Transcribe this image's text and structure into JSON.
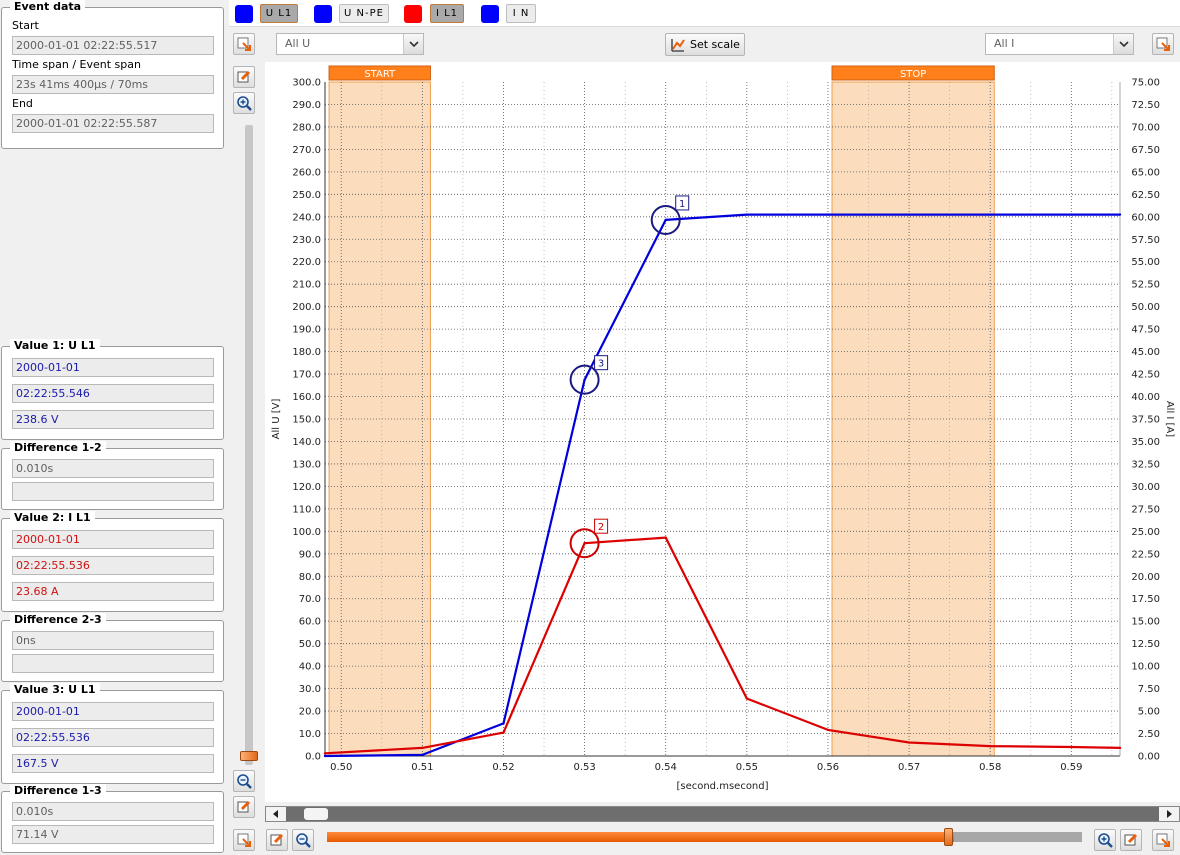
{
  "event_data": {
    "title": "Event data",
    "start_label": "Start",
    "start_value": "2000-01-01 02:22:55.517",
    "span_label": "Time span / Event span",
    "span_value": "23s 41ms 400µs  / 70ms",
    "end_label": "End",
    "end_value": "2000-01-01 02:22:55.587"
  },
  "value1": {
    "title": "Value 1: U L1",
    "date": "2000-01-01",
    "time": "02:22:55.546",
    "value": "238.6 V",
    "color": "#1a1aaa"
  },
  "diff12": {
    "title": "Difference 1-2",
    "time": "0.010s",
    "value": ""
  },
  "value2": {
    "title": "Value 2: I L1",
    "date": "2000-01-01",
    "time": "02:22:55.536",
    "value": "23.68 A",
    "color": "#d01010"
  },
  "diff23": {
    "title": "Difference 2-3",
    "time": "0ns",
    "value": ""
  },
  "value3": {
    "title": "Value 3: U L1",
    "date": "2000-01-01",
    "time": "02:22:55.536",
    "value": "167.5 V",
    "color": "#1a1aaa"
  },
  "diff13": {
    "title": "Difference 1-3",
    "time": "0.010s",
    "value": "71.14 V"
  },
  "channels": [
    {
      "label": "U L1",
      "color": "#0000ff",
      "active": true
    },
    {
      "label": "U N-PE",
      "color": "#0000ff",
      "active": false
    },
    {
      "label": "I L1",
      "color": "#ff0000",
      "active": true
    },
    {
      "label": "I N",
      "color": "#0000ff",
      "active": false
    }
  ],
  "toolbar": {
    "left_select": "All U",
    "right_select": "All I",
    "set_scale_label": "Set scale"
  },
  "colors": {
    "accent_orange": "#ff7f1a",
    "marker_region": "#fbdcbd",
    "u_series": "#0000dd",
    "i_series": "#e00000"
  },
  "chart_data": {
    "type": "line",
    "xlabel": "[second.msecond]",
    "ylabel_left": "All U [V]",
    "ylabel_right": "All I [A]",
    "xlim": [
      0.498,
      0.596
    ],
    "ylim_left": [
      0,
      300
    ],
    "ylim_right": [
      0,
      75
    ],
    "x_ticks": [
      "0.50",
      "0.51",
      "0.52",
      "0.53",
      "0.54",
      "0.55",
      "0.56",
      "0.57",
      "0.58",
      "0.59"
    ],
    "y_left_ticks": [
      "0.0",
      "10.0",
      "20.0",
      "30.0",
      "40.0",
      "50.0",
      "60.0",
      "70.0",
      "80.0",
      "90.0",
      "100.0",
      "110.0",
      "120.0",
      "130.0",
      "140.0",
      "150.0",
      "160.0",
      "170.0",
      "180.0",
      "190.0",
      "200.0",
      "210.0",
      "220.0",
      "230.0",
      "240.0",
      "250.0",
      "260.0",
      "270.0",
      "280.0",
      "290.0",
      "300.0"
    ],
    "y_right_ticks": [
      "0.00",
      "2.50",
      "5.00",
      "7.50",
      "10.00",
      "12.50",
      "15.00",
      "17.50",
      "20.00",
      "22.50",
      "25.00",
      "27.50",
      "30.00",
      "32.50",
      "35.00",
      "37.50",
      "40.00",
      "42.50",
      "45.00",
      "47.50",
      "50.00",
      "52.50",
      "55.00",
      "57.50",
      "60.00",
      "62.50",
      "65.00",
      "67.50",
      "70.00",
      "72.50",
      "75.00"
    ],
    "grid": true,
    "series": [
      {
        "name": "U L1",
        "axis": "left",
        "color": "#0000dd",
        "x": [
          0.498,
          0.51,
          0.52,
          0.53,
          0.54,
          0.55,
          0.56,
          0.57,
          0.58,
          0.59,
          0.596
        ],
        "y": [
          0.0,
          0.5,
          14.5,
          167.5,
          238.6,
          241.0,
          241.0,
          241.0,
          241.0,
          241.0,
          241.0
        ]
      },
      {
        "name": "I L1",
        "axis": "right",
        "color": "#dd0000",
        "x": [
          0.498,
          0.51,
          0.52,
          0.53,
          0.54,
          0.55,
          0.56,
          0.57,
          0.58,
          0.59,
          0.596
        ],
        "y": [
          0.3,
          0.9,
          2.6,
          23.68,
          24.3,
          6.4,
          2.9,
          1.5,
          1.1,
          1.0,
          0.9
        ]
      }
    ],
    "regions": [
      {
        "label": "START",
        "x0": 0.4985,
        "x1": 0.511
      },
      {
        "label": "STOP",
        "x0": 0.5605,
        "x1": 0.5805
      }
    ],
    "markers": [
      {
        "label": "1",
        "x": 0.54,
        "y": 238.6,
        "axis": "left",
        "color": "#1a1a80"
      },
      {
        "label": "2",
        "x": 0.53,
        "y": 23.68,
        "axis": "right",
        "color": "#cc0000"
      },
      {
        "label": "3",
        "x": 0.53,
        "y": 167.5,
        "axis": "left",
        "color": "#1a1a80"
      }
    ]
  }
}
